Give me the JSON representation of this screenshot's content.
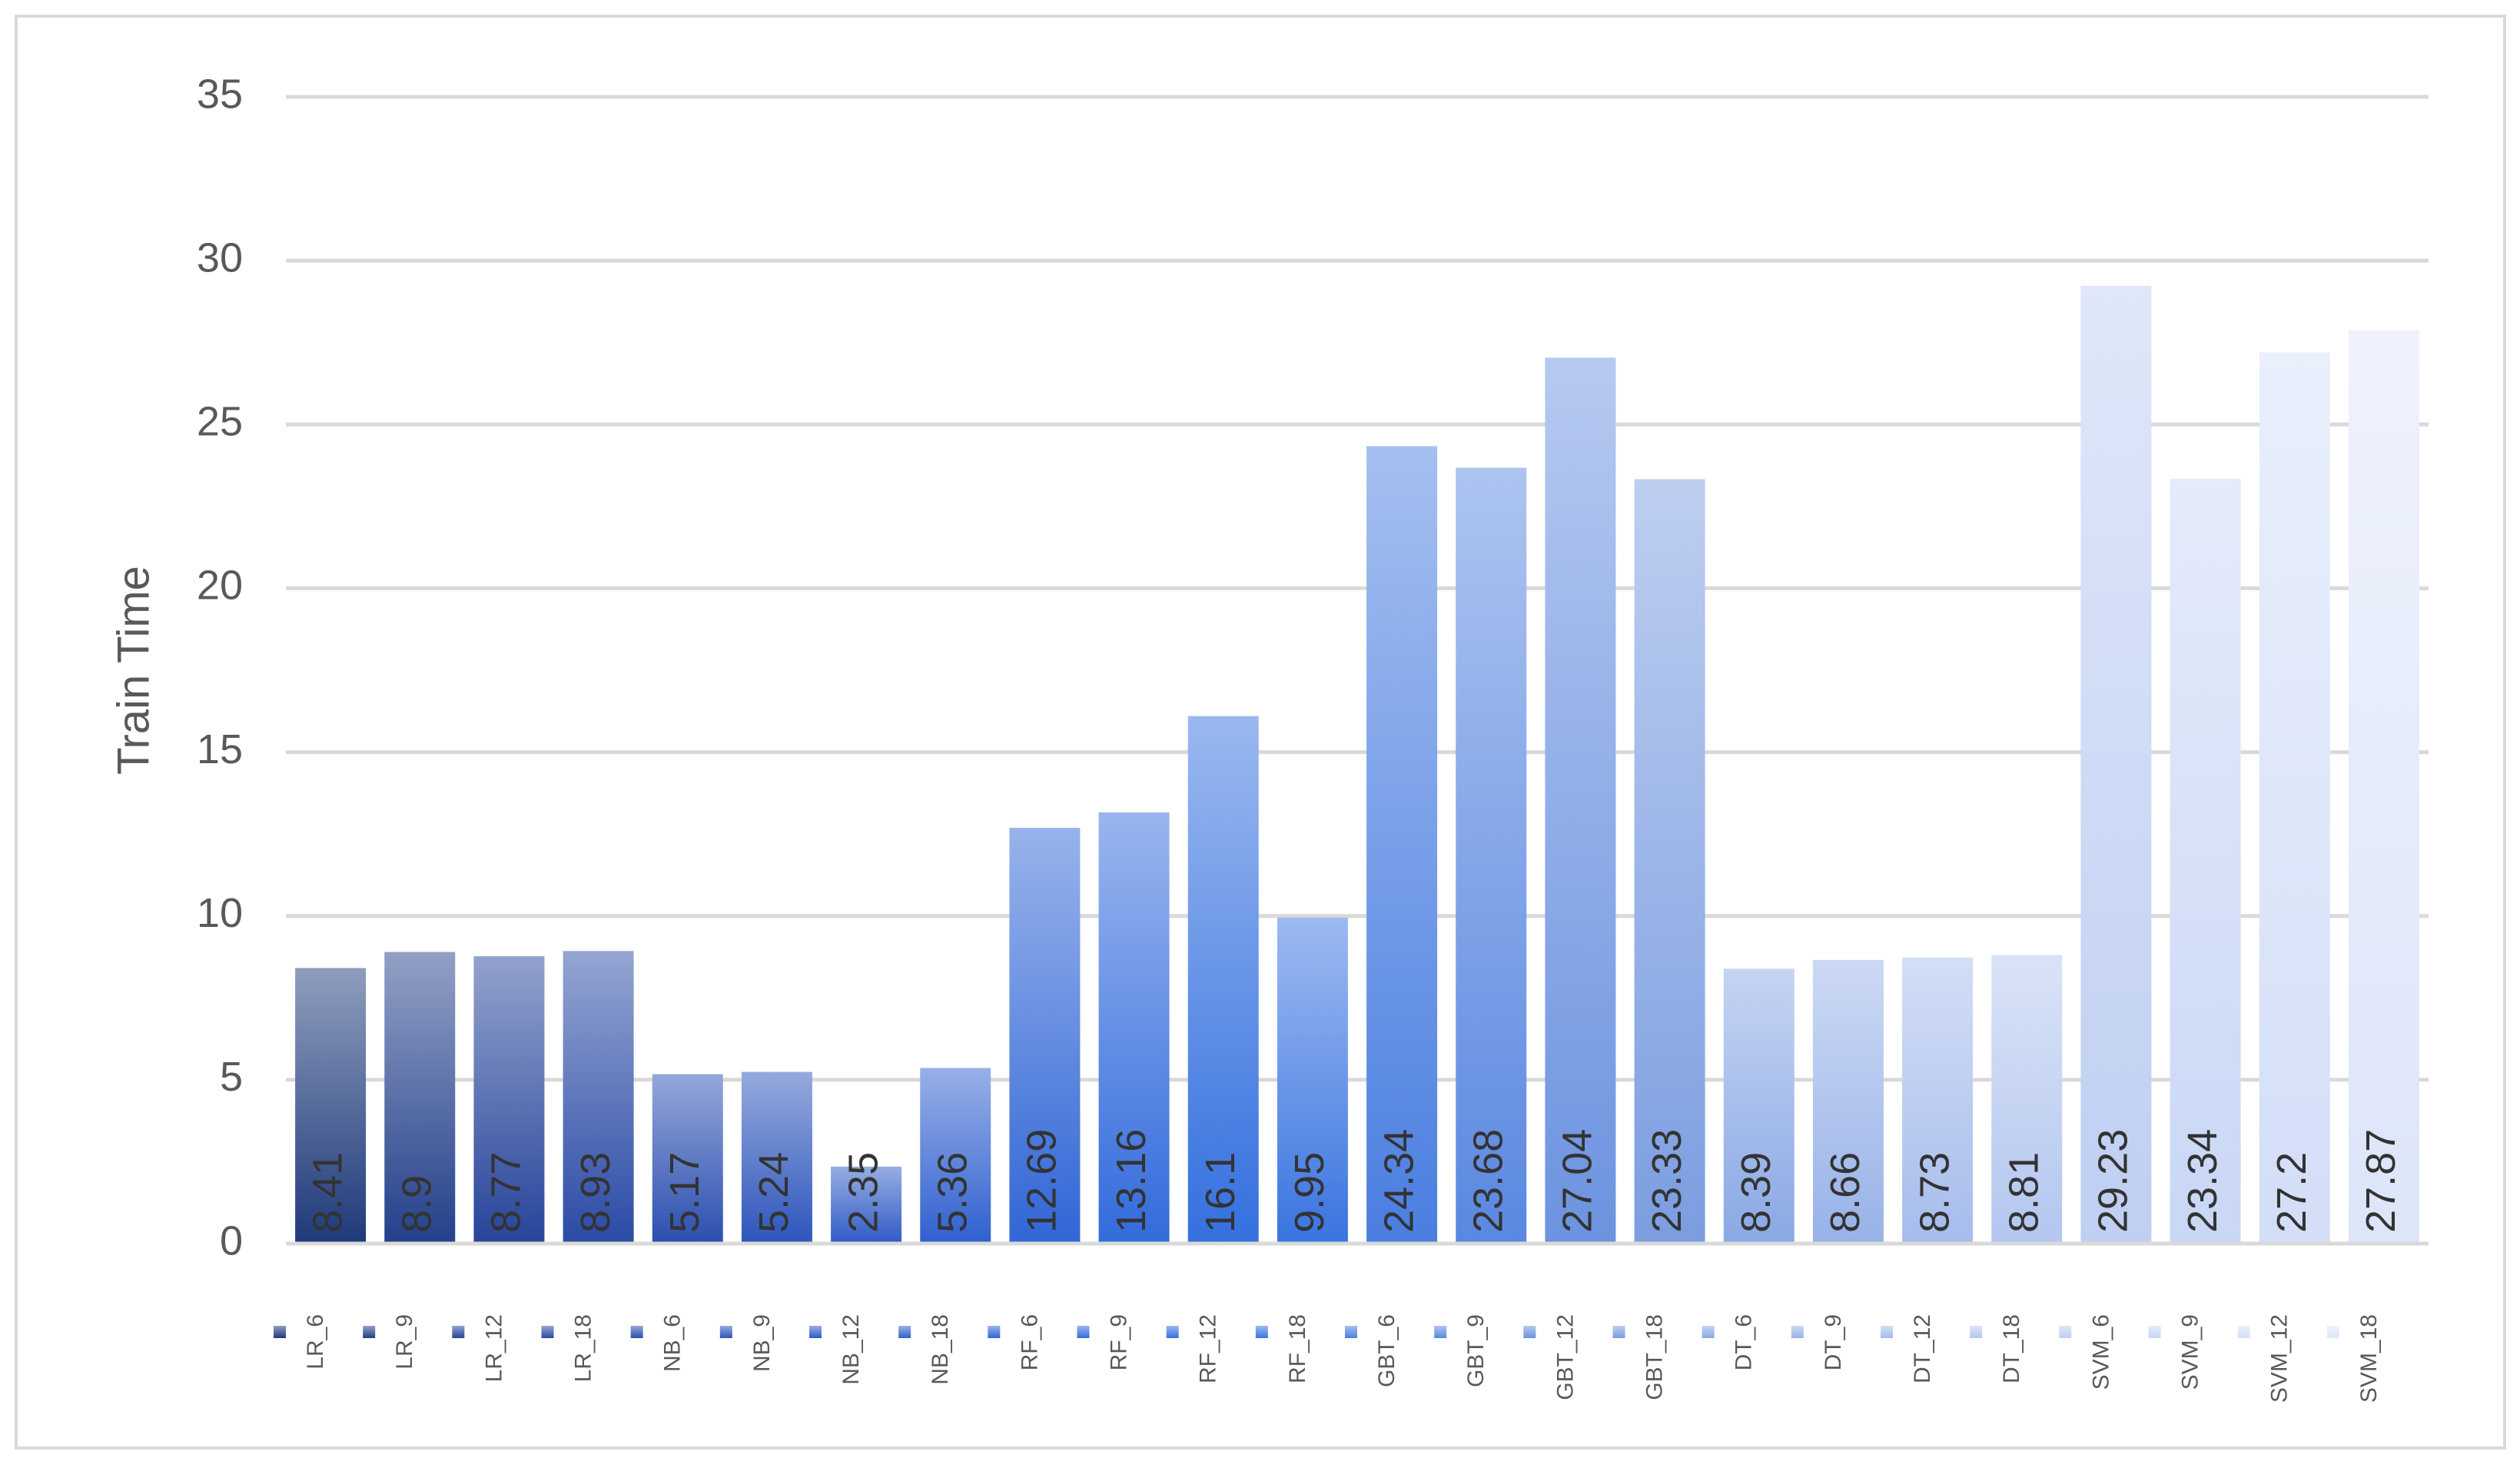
{
  "chart_data": {
    "type": "bar",
    "y_axis_label": "Train Time",
    "categories": [
      "LR_6",
      "LR_9",
      "LR_12",
      "LR_18",
      "NB_6",
      "NB_9",
      "NB_12",
      "NB_18",
      "RF_6",
      "RF_9",
      "RF_12",
      "RF_18",
      "GBT_6",
      "GBT_9",
      "GBT_12",
      "GBT_18",
      "DT_6",
      "DT_9",
      "DT_12",
      "DT_18",
      "SVM_6",
      "SVM_9",
      "SVM_12",
      "SVM_18"
    ],
    "values": [
      8.41,
      8.9,
      8.77,
      8.93,
      5.17,
      5.24,
      2.35,
      5.36,
      12.69,
      13.16,
      16.1,
      9.95,
      24.34,
      23.68,
      27.04,
      23.33,
      8.39,
      8.66,
      8.73,
      8.81,
      29.23,
      23.34,
      27.2,
      27.87
    ],
    "colors": [
      "#1f3a7a",
      "#24408a",
      "#27449a",
      "#2a4aa5",
      "#2b4fb0",
      "#2d55bb",
      "#2f5bc6",
      "#3060cf",
      "#3166d6",
      "#336bdc",
      "#3470df",
      "#3a74e0",
      "#4a7ee0",
      "#5a88e0",
      "#6c93e0",
      "#7b9de0",
      "#8aa8e4",
      "#98b2e8",
      "#a6bcec",
      "#b3c6ef",
      "#bfcff2",
      "#c9d7f5",
      "#d3def7",
      "#dde5f9"
    ],
    "ylim": [
      0,
      35
    ],
    "yticks": [
      0,
      5,
      10,
      15,
      20,
      25,
      30,
      35
    ],
    "grid": true,
    "legend": "bottom"
  }
}
